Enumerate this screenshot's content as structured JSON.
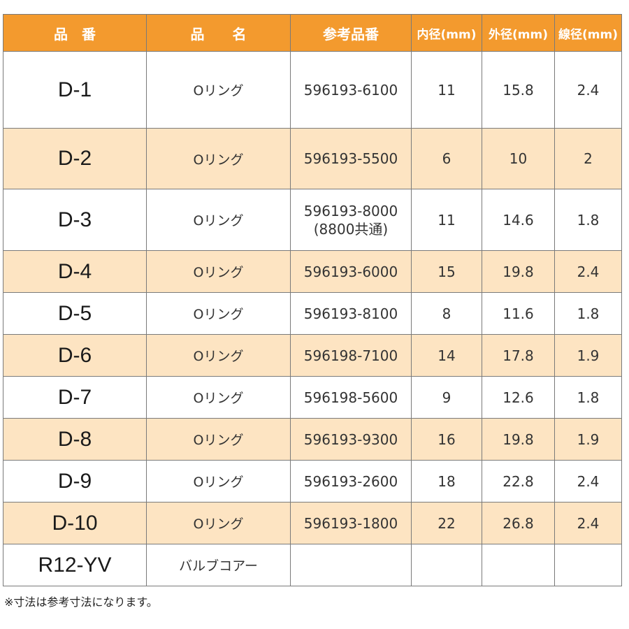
{
  "table": {
    "headers": [
      "品　番",
      "品　　名",
      "参考品番",
      "内径(mm)",
      "外径(mm)",
      "線径(mm)"
    ],
    "rows": [
      {
        "code": "D-1",
        "name": "Oリング",
        "ref": "596193-6100",
        "ref2": "",
        "inner": "11",
        "outer": "15.8",
        "wire": "2.4"
      },
      {
        "code": "D-2",
        "name": "Oリング",
        "ref": "596193-5500",
        "ref2": "",
        "inner": "6",
        "outer": "10",
        "wire": "2"
      },
      {
        "code": "D-3",
        "name": "Oリング",
        "ref": "596193-8000",
        "ref2": "(8800共通)",
        "inner": "11",
        "outer": "14.6",
        "wire": "1.8"
      },
      {
        "code": "D-4",
        "name": "Oリング",
        "ref": "596193-6000",
        "ref2": "",
        "inner": "15",
        "outer": "19.8",
        "wire": "2.4"
      },
      {
        "code": "D-5",
        "name": "Oリング",
        "ref": "596193-8100",
        "ref2": "",
        "inner": "8",
        "outer": "11.6",
        "wire": "1.8"
      },
      {
        "code": "D-6",
        "name": "Oリング",
        "ref": "596198-7100",
        "ref2": "",
        "inner": "14",
        "outer": "17.8",
        "wire": "1.9"
      },
      {
        "code": "D-7",
        "name": "Oリング",
        "ref": "596198-5600",
        "ref2": "",
        "inner": "9",
        "outer": "12.6",
        "wire": "1.8"
      },
      {
        "code": "D-8",
        "name": "Oリング",
        "ref": "596193-9300",
        "ref2": "",
        "inner": "16",
        "outer": "19.8",
        "wire": "1.9"
      },
      {
        "code": "D-9",
        "name": "Oリング",
        "ref": "596193-2600",
        "ref2": "",
        "inner": "18",
        "outer": "22.8",
        "wire": "2.4"
      },
      {
        "code": "D-10",
        "name": "Oリング",
        "ref": "596193-1800",
        "ref2": "",
        "inner": "22",
        "outer": "26.8",
        "wire": "2.4"
      },
      {
        "code": "R12-YV",
        "name": "バルブコアー",
        "ref": "",
        "ref2": "",
        "inner": "",
        "outer": "",
        "wire": ""
      }
    ]
  },
  "note": "※寸法は参考寸法になります。",
  "colors": {
    "header": "#f39a2e",
    "alt_row": "#fde4c2",
    "border": "#7a7a7a"
  }
}
